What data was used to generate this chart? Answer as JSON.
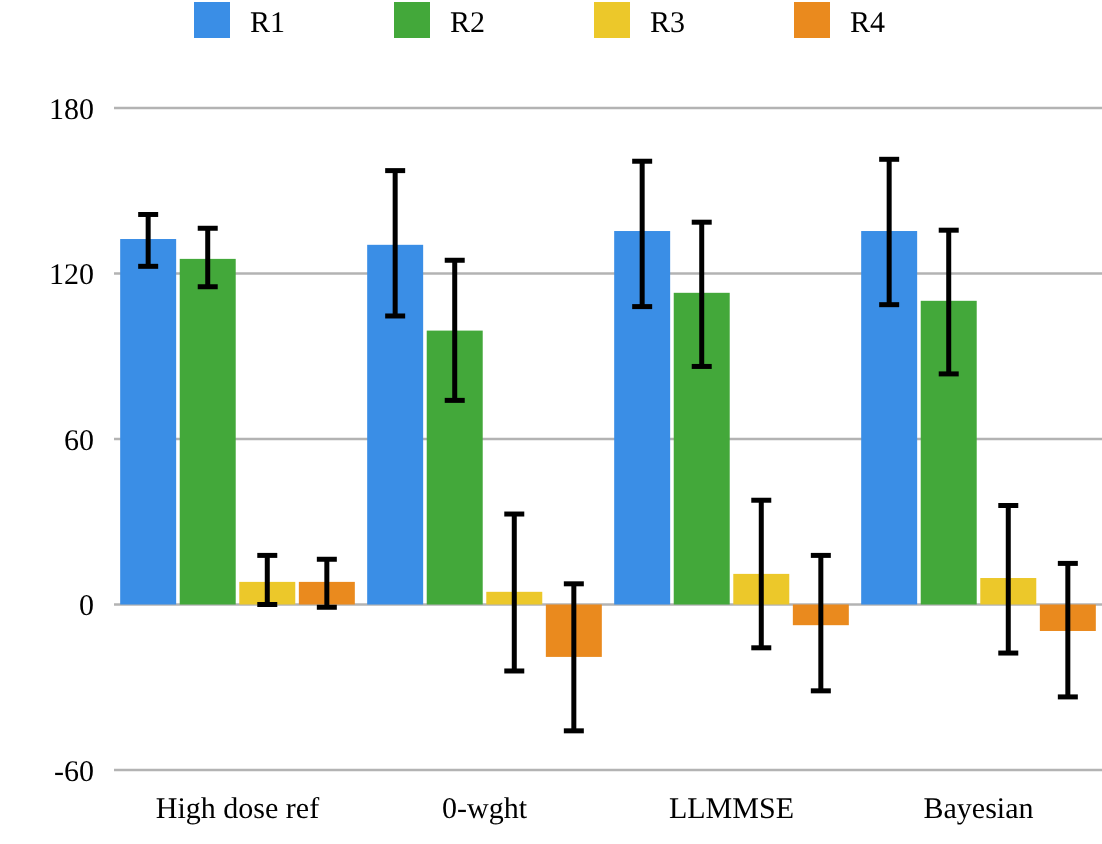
{
  "chart_data": {
    "type": "bar",
    "categories": [
      "High dose ref",
      "0-wght",
      "LLMMSE",
      "Bayesian"
    ],
    "series": [
      {
        "name": "R1",
        "color": "#3a8ee6",
        "values": [
          132.5,
          130.4,
          135.4,
          135.4
        ],
        "errors": [
          [
            122.6,
            141.4
          ],
          [
            104.6,
            157.3
          ],
          [
            108,
            160.7
          ],
          [
            108.7,
            161.4
          ]
        ]
      },
      {
        "name": "R2",
        "color": "#43a83a",
        "values": [
          125.3,
          99.3,
          113,
          110.1
        ],
        "errors": [
          [
            115.2,
            136.4
          ],
          [
            74,
            124.8
          ],
          [
            86.3,
            138.6
          ],
          [
            83.6,
            135.7
          ]
        ]
      },
      {
        "name": "R3",
        "color": "#ecc82a",
        "values": [
          8.2,
          4.6,
          11.1,
          9.6
        ],
        "errors": [
          [
            0,
            17.8
          ],
          [
            -24.1,
            32.8
          ],
          [
            -15.7,
            37.8
          ],
          [
            -17.6,
            35.9
          ]
        ]
      },
      {
        "name": "R4",
        "color": "#ea8a1e",
        "values": [
          8.2,
          -19,
          -7.5,
          -9.6
        ],
        "errors": [
          [
            -1,
            16.4
          ],
          [
            -45.8,
            7.5
          ],
          [
            -31.3,
            17.8
          ],
          [
            -33.5,
            14.9
          ]
        ]
      }
    ],
    "ylim": [
      -60,
      180
    ],
    "yticks": [
      -60,
      0,
      60,
      120,
      180
    ],
    "grid": "y",
    "legend": "top"
  }
}
